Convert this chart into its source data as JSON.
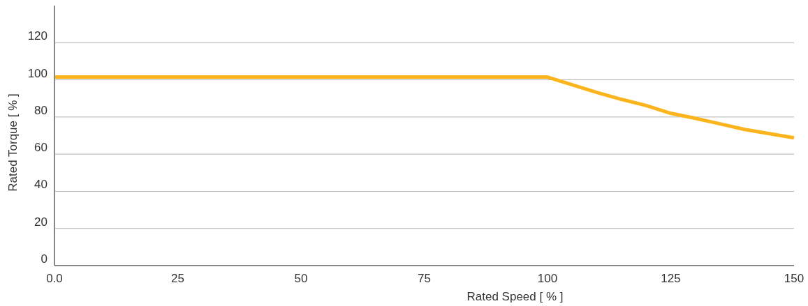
{
  "chart_data": {
    "type": "line",
    "xlabel": "Rated Speed [ % ]",
    "ylabel": "Rated Torque [ % ]",
    "xlim": [
      0,
      150
    ],
    "xticks": [
      {
        "value": 0,
        "label": "0.0"
      },
      25,
      50,
      75,
      100,
      125,
      150
    ],
    "ylim": [
      0,
      140
    ],
    "yticks": [
      0,
      20,
      40,
      60,
      80,
      100,
      120
    ],
    "grid": "y",
    "series": [
      {
        "color": "#fbb41c",
        "x": [
          0,
          100,
          110,
          115,
          120,
          125,
          130,
          140,
          150
        ],
        "values": [
          101.5,
          101.5,
          93.2,
          89.5,
          86.2,
          82,
          79.3,
          73.3,
          68.8
        ]
      }
    ]
  }
}
